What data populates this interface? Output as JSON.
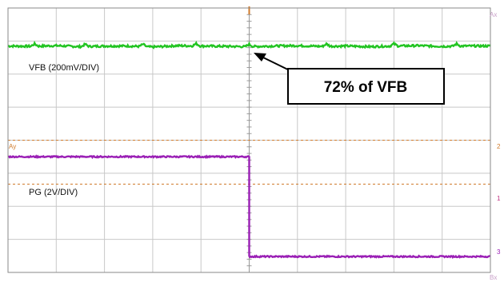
{
  "chart_data": {
    "type": "line",
    "title": "",
    "grid": true,
    "x_divisions": 10,
    "y_divisions": 8,
    "x": [
      0,
      0.5,
      1,
      1.5,
      2,
      2.5,
      3,
      3.5,
      4,
      4.5,
      5,
      5.5,
      6,
      6.5,
      7,
      7.5,
      8,
      8.5,
      9,
      9.5,
      10
    ],
    "series": [
      {
        "name": "VFB (200mV/DIV)",
        "color": "#22c422",
        "values": [
          6.85,
          6.84,
          6.86,
          6.83,
          6.85,
          6.85,
          6.82,
          6.86,
          6.85,
          6.84,
          6.83,
          6.85,
          6.86,
          6.84,
          6.85,
          6.83,
          6.85,
          6.86,
          6.84,
          6.85,
          6.85
        ]
      },
      {
        "name": "PG (2V/DIV)",
        "color": "#9a1fb5",
        "values": [
          3.5,
          3.5,
          3.5,
          3.49,
          3.5,
          3.5,
          3.5,
          3.49,
          3.5,
          3.5,
          0.48,
          0.48,
          0.47,
          0.48,
          0.48,
          0.48,
          0.47,
          0.48,
          0.48,
          0.48,
          0.48
        ]
      }
    ],
    "reference_levels": [
      {
        "label": "",
        "value": 4.0,
        "color": "#d07a2a"
      },
      {
        "label": "",
        "value": 2.67,
        "color": "#d07a2a"
      }
    ],
    "annotations": [
      {
        "text": "72% of VFB",
        "points_to_x": 5.0
      }
    ]
  },
  "markers": {
    "top_right": "Ax",
    "bottom_right": "Bx",
    "ch1_right": "1",
    "ch2_right": "2",
    "ch3_right": "3",
    "left_ref": "Ay"
  },
  "colors": {
    "grid": "#c8c8c8",
    "frame": "#8a8a8a",
    "center_axis": "#999999",
    "trigger": "#d07a2a",
    "ch1_marker": "#c03080",
    "ch3_marker": "#9a1fb5"
  }
}
